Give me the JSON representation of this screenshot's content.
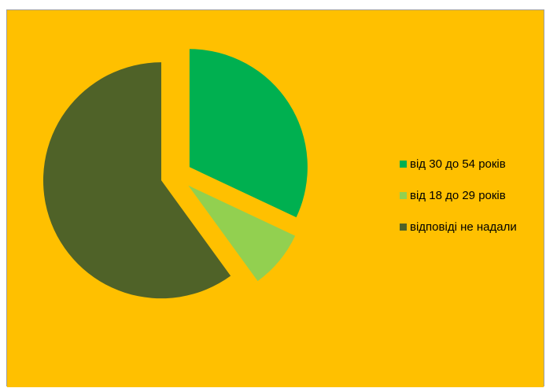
{
  "colors": {
    "page_background": "#ffffff",
    "chart_background": "#ffc000",
    "border": "#9e9e9e"
  },
  "chart_data": {
    "type": "pie",
    "title": "",
    "exploded": true,
    "legend_position": "right",
    "slices": [
      {
        "label": "від 30 до 54 років",
        "value": 32,
        "color": "#00b050"
      },
      {
        "label": "від 18 до 29 років",
        "value": 8,
        "color": "#92d050"
      },
      {
        "label": "відповіді не надали",
        "value": 60,
        "color": "#4f6228"
      }
    ]
  }
}
